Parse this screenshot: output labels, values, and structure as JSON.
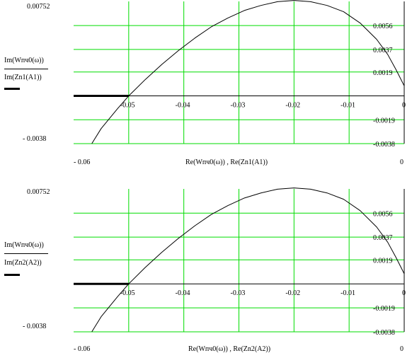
{
  "chart_data": [
    {
      "type": "line",
      "xlabel": "Re(Wпч0(ω)) , Re(Zn1(A1))",
      "ylabel_top": "Im(Wпч0(ω))",
      "ylabel_bottom": "Im(Zn1(A1))",
      "xlim": [
        -0.06,
        0
      ],
      "ylim": [
        -0.0038,
        0.00752
      ],
      "xlim_labels": [
        "- 0.06",
        "0"
      ],
      "ylim_labels": [
        "0.00752",
        "- 0.0038"
      ],
      "x_ticks": [
        -0.05,
        -0.04,
        -0.03,
        -0.02,
        -0.01,
        0
      ],
      "x_tick_labels": [
        "-0.05",
        "-0.04",
        "-0.03",
        "-0.02",
        "-0.01",
        "0"
      ],
      "y_ticks": [
        0.0056,
        0.0037,
        0.0019,
        -0.0019,
        -0.0038
      ],
      "y_tick_labels": [
        "0.0056",
        "0.0037",
        "0.0019",
        "-0.0019",
        "-0.0038"
      ],
      "grid": true,
      "series": [
        {
          "x": [
            -0.0567,
            -0.055,
            -0.052,
            -0.05,
            -0.047,
            -0.044,
            -0.041,
            -0.038,
            -0.035,
            -0.032,
            -0.029,
            -0.026,
            -0.023,
            -0.02,
            -0.017,
            -0.014,
            -0.011,
            -0.008,
            -0.005,
            -0.003,
            -0.0015,
            0.0
          ],
          "y": [
            -0.0038,
            -0.0026,
            -0.001,
            0.0,
            0.0013,
            0.0025,
            0.0036,
            0.0046,
            0.0055,
            0.0062,
            0.0068,
            0.0072,
            0.0075,
            0.0076,
            0.0075,
            0.0072,
            0.0067,
            0.0058,
            0.0045,
            0.0033,
            0.0021,
            0.0008
          ],
          "color": "#000000"
        },
        {
          "x": [
            -0.06,
            -0.05
          ],
          "y": [
            0.0,
            0.0
          ],
          "color": "#000000",
          "thick": true
        }
      ]
    },
    {
      "type": "line",
      "xlabel": "Re(Wпч0(ω)) , Re(Zn2(A2))",
      "ylabel_top": "Im(Wпч0(ω))",
      "ylabel_bottom": "Im(Zn2(A2))",
      "xlim": [
        -0.06,
        0
      ],
      "ylim": [
        -0.0038,
        0.00752
      ],
      "xlim_labels": [
        "- 0.06",
        "0"
      ],
      "ylim_labels": [
        "0.00752",
        "- 0.0038"
      ],
      "x_ticks": [
        -0.05,
        -0.04,
        -0.03,
        -0.02,
        -0.01,
        0
      ],
      "x_tick_labels": [
        "-0.05",
        "-0.04",
        "-0.03",
        "-0.02",
        "-0.01",
        "0"
      ],
      "y_ticks": [
        0.0056,
        0.0037,
        0.0019,
        -0.0019,
        -0.0038
      ],
      "y_tick_labels": [
        "0.0056",
        "0.0037",
        "0.0019",
        "-0.0019",
        "-0.0038"
      ],
      "grid": true,
      "series": [
        {
          "x": [
            -0.0567,
            -0.055,
            -0.052,
            -0.05,
            -0.047,
            -0.044,
            -0.041,
            -0.038,
            -0.035,
            -0.032,
            -0.029,
            -0.026,
            -0.023,
            -0.02,
            -0.017,
            -0.014,
            -0.011,
            -0.008,
            -0.005,
            -0.003,
            -0.0015,
            0.0
          ],
          "y": [
            -0.0038,
            -0.0026,
            -0.001,
            0.0,
            0.0013,
            0.0025,
            0.0036,
            0.0046,
            0.0055,
            0.0062,
            0.0068,
            0.0072,
            0.0075,
            0.0076,
            0.0075,
            0.0072,
            0.0067,
            0.0058,
            0.0045,
            0.0033,
            0.0021,
            0.0008
          ],
          "color": "#000000"
        },
        {
          "x": [
            -0.06,
            -0.05
          ],
          "y": [
            0.0,
            0.0
          ],
          "color": "#000000",
          "thick": true
        }
      ]
    }
  ],
  "colors": {
    "grid": "#00dd00",
    "axis": "#000000",
    "curve": "#000000"
  }
}
